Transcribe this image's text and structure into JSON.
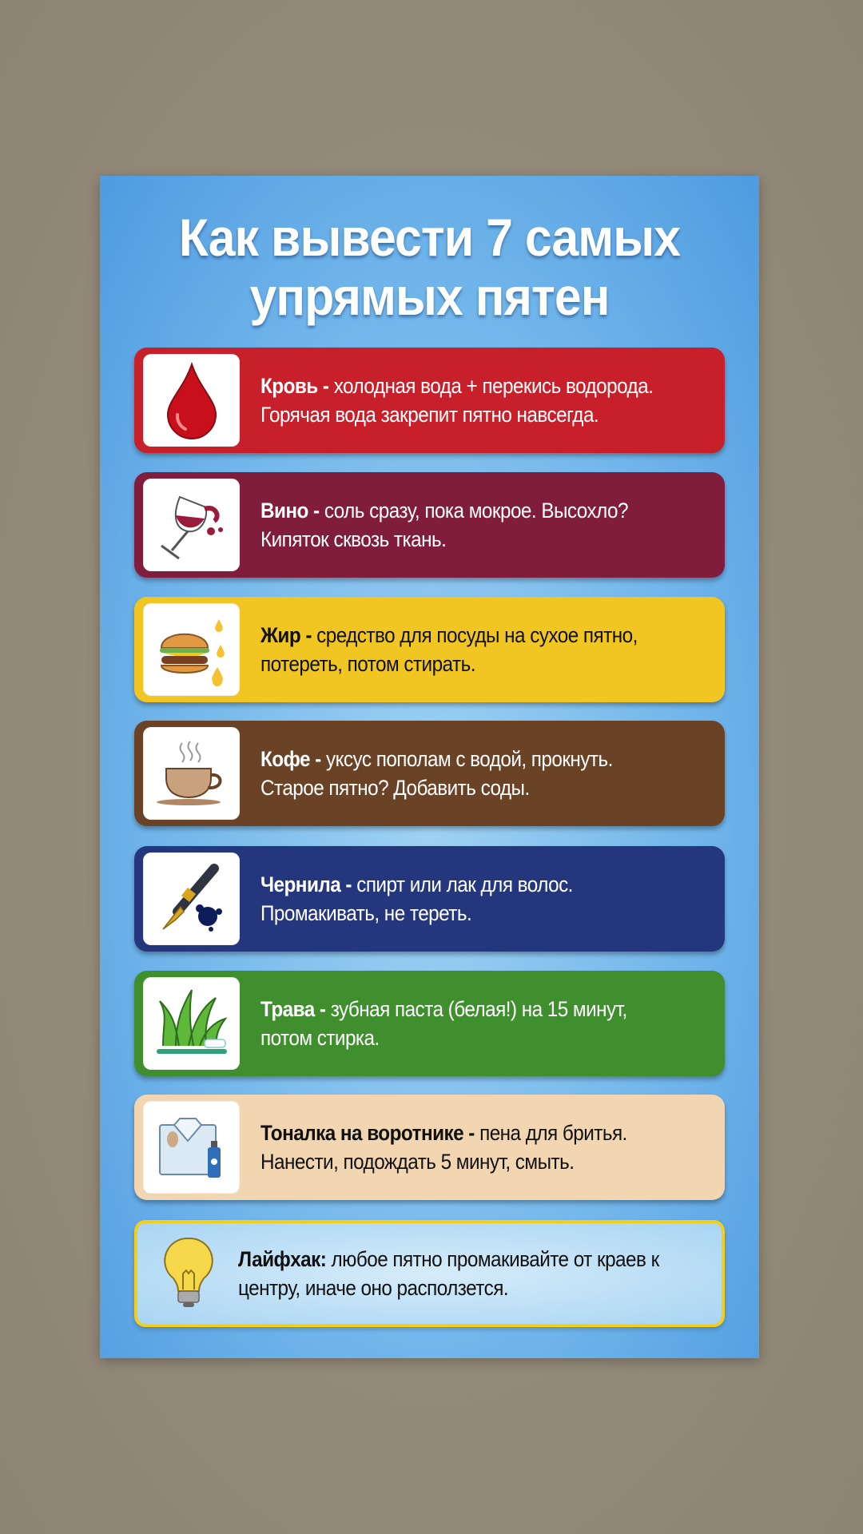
{
  "title": [
    "Как вывести 7 самых",
    "упрямых пятен"
  ],
  "items": [
    {
      "name": "Кровь",
      "sep": " - ",
      "text": "холодная вода + перекись водорода. Горячая вода закрепит пятно навсегда.",
      "icon": "blood-drop-icon",
      "color": "#c8202a"
    },
    {
      "name": "Вино",
      "sep": " - ",
      "text": "соль сразу, пока мокрое. Высохло? Кипяток сквозь ткань.",
      "icon": "wine-glass-icon",
      "color": "#801c3c"
    },
    {
      "name": "Жир",
      "sep": " - ",
      "text": "средство для посуды на сухое пятно, потереть, потом стирать.",
      "icon": "burger-icon",
      "color": "#f1c623"
    },
    {
      "name": "Кофе",
      "sep": " - ",
      "text": "уксус пополам с водой, прокнуть. Старое пятно? Добавить соды.",
      "icon": "coffee-cup-icon",
      "color": "#6a4226"
    },
    {
      "name": "Чернила",
      "sep": " - ",
      "text": "спирт или лак для волос. Промакивать, не тереть.",
      "icon": "fountain-pen-icon",
      "color": "#24377c"
    },
    {
      "name": "Трава",
      "sep": " - ",
      "text": "зубная паста (белая!) на 15 минут, потом стирка.",
      "icon": "grass-toothbrush-icon",
      "color": "#3f8f2f"
    },
    {
      "name": "Тоналка на воротнике",
      "sep": " - ",
      "text": "пена для бритья. Нанести, подождать 5 минут, смыть.",
      "icon": "shirt-foam-icon",
      "color": "#f2d6b1"
    }
  ],
  "lifehack": {
    "name": "Лайфхак:",
    "text": " любое пятно промакивайте от краев к центру, иначе оно расползется.",
    "icon": "light-bulb-icon",
    "border_color": "#f3cf19"
  }
}
